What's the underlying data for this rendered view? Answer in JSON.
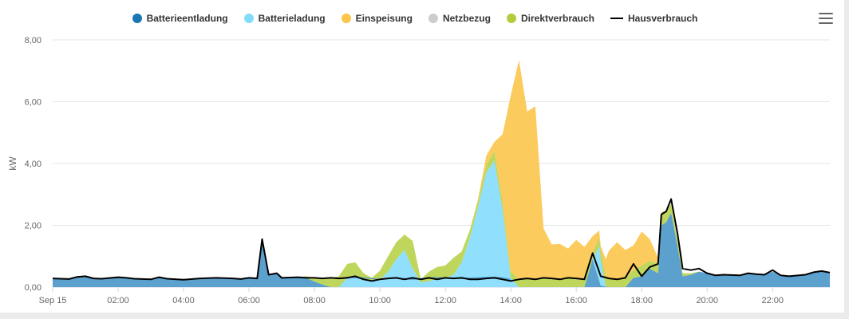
{
  "legend": {
    "items": [
      {
        "key": "batterieentladung",
        "label": "Batterieentladung",
        "color": "#1a77b4",
        "shape": "dot"
      },
      {
        "key": "batterieladung",
        "label": "Batterieladung",
        "color": "#84dcfc",
        "shape": "dot"
      },
      {
        "key": "einspeisung",
        "label": "Einspeisung",
        "color": "#fcc54c",
        "shape": "dot"
      },
      {
        "key": "netzbezug",
        "label": "Netzbezug",
        "color": "#cccccc",
        "shape": "dot"
      },
      {
        "key": "direktverbrauch",
        "label": "Direktverbrauch",
        "color": "#b4cc3c",
        "shape": "dot"
      },
      {
        "key": "hausverbrauch",
        "label": "Hausverbrauch",
        "color": "#000000",
        "shape": "line"
      }
    ]
  },
  "menu": {
    "icon": "hamburger-menu-icon"
  },
  "chart_data": {
    "type": "area",
    "ylabel": "kW",
    "ylim": [
      0,
      8
    ],
    "yticks": [
      "0,00",
      "2,00",
      "4,00",
      "6,00",
      "8,00"
    ],
    "xlim": [
      0,
      23.75
    ],
    "xticks": [
      {
        "v": 0,
        "label": "Sep 15"
      },
      {
        "v": 2,
        "label": "02:00"
      },
      {
        "v": 4,
        "label": "04:00"
      },
      {
        "v": 6,
        "label": "06:00"
      },
      {
        "v": 8,
        "label": "08:00"
      },
      {
        "v": 10,
        "label": "10:00"
      },
      {
        "v": 12,
        "label": "12:00"
      },
      {
        "v": 14,
        "label": "14:00"
      },
      {
        "v": 16,
        "label": "16:00"
      },
      {
        "v": 18,
        "label": "18:00"
      },
      {
        "v": 20,
        "label": "20:00"
      },
      {
        "v": 22,
        "label": "22:00"
      }
    ],
    "grid": true,
    "legend_position": "top",
    "stacked": true,
    "x_unit": "hours",
    "series": [
      {
        "name": "Batterieentladung",
        "key": "batterieentladung",
        "color": "#4a96c8",
        "points": [
          [
            0,
            0.28
          ],
          [
            0.5,
            0.26
          ],
          [
            0.75,
            0.33
          ],
          [
            1,
            0.35
          ],
          [
            1.25,
            0.28
          ],
          [
            1.5,
            0.27
          ],
          [
            2,
            0.32
          ],
          [
            2.25,
            0.3
          ],
          [
            2.5,
            0.27
          ],
          [
            3,
            0.25
          ],
          [
            3.25,
            0.32
          ],
          [
            3.5,
            0.27
          ],
          [
            4,
            0.24
          ],
          [
            4.5,
            0.28
          ],
          [
            5,
            0.3
          ],
          [
            5.5,
            0.28
          ],
          [
            5.75,
            0.26
          ],
          [
            6,
            0.3
          ],
          [
            6.25,
            0.28
          ],
          [
            6.4,
            1.5
          ],
          [
            6.6,
            0.4
          ],
          [
            6.85,
            0.45
          ],
          [
            7,
            0.3
          ],
          [
            7.5,
            0.32
          ],
          [
            7.75,
            0.3
          ],
          [
            8,
            0.18
          ],
          [
            8.25,
            0.08
          ],
          [
            8.5,
            0
          ],
          [
            8.75,
            0
          ],
          [
            9,
            0
          ],
          [
            9.5,
            0
          ],
          [
            10,
            0
          ],
          [
            10.5,
            0
          ],
          [
            11,
            0
          ],
          [
            11.5,
            0
          ],
          [
            12,
            0
          ],
          [
            12.5,
            0
          ],
          [
            13,
            0
          ],
          [
            13.5,
            0
          ],
          [
            14,
            0
          ],
          [
            14.5,
            0
          ],
          [
            15,
            0
          ],
          [
            15.25,
            0
          ],
          [
            15.5,
            0
          ],
          [
            15.75,
            0
          ],
          [
            16,
            0
          ],
          [
            16.25,
            0
          ],
          [
            16.5,
            0.9
          ],
          [
            16.75,
            0.05
          ],
          [
            17,
            0
          ],
          [
            17.5,
            0
          ],
          [
            17.75,
            0.3
          ],
          [
            18,
            0.35
          ],
          [
            18.25,
            0.6
          ],
          [
            18.5,
            0.45
          ],
          [
            18.6,
            2.0
          ],
          [
            18.75,
            2.1
          ],
          [
            18.9,
            2.4
          ],
          [
            19.1,
            1.3
          ],
          [
            19.25,
            0.35
          ],
          [
            19.5,
            0.4
          ],
          [
            19.75,
            0.5
          ],
          [
            20,
            0.45
          ],
          [
            20.25,
            0.38
          ],
          [
            20.5,
            0.4
          ],
          [
            21,
            0.38
          ],
          [
            21.25,
            0.45
          ],
          [
            21.5,
            0.42
          ],
          [
            21.75,
            0.4
          ],
          [
            22,
            0.5
          ],
          [
            22.25,
            0.38
          ],
          [
            22.5,
            0.35
          ],
          [
            23,
            0.4
          ],
          [
            23.25,
            0.48
          ],
          [
            23.5,
            0.5
          ],
          [
            23.75,
            0.45
          ]
        ]
      },
      {
        "name": "Batterieladung",
        "key": "batterieladung",
        "color": "#84dcfc",
        "points": [
          [
            0,
            0
          ],
          [
            8,
            0
          ],
          [
            8.25,
            0
          ],
          [
            8.5,
            0
          ],
          [
            8.75,
            0
          ],
          [
            9,
            0.3
          ],
          [
            9.25,
            0.35
          ],
          [
            9.5,
            0.25
          ],
          [
            9.75,
            0.2
          ],
          [
            10,
            0.25
          ],
          [
            10.25,
            0.5
          ],
          [
            10.5,
            0.9
          ],
          [
            10.75,
            1.2
          ],
          [
            11,
            0.6
          ],
          [
            11.25,
            0.15
          ],
          [
            11.5,
            0.2
          ],
          [
            11.75,
            0.25
          ],
          [
            12,
            0.3
          ],
          [
            12.25,
            0.4
          ],
          [
            12.5,
            0.8
          ],
          [
            12.75,
            1.6
          ],
          [
            13,
            2.6
          ],
          [
            13.25,
            3.7
          ],
          [
            13.5,
            4.1
          ],
          [
            13.75,
            2.5
          ],
          [
            14,
            0.3
          ],
          [
            14.25,
            0
          ],
          [
            15,
            0
          ],
          [
            15.5,
            0
          ],
          [
            16,
            0
          ],
          [
            16.5,
            0
          ],
          [
            16.7,
            1.1
          ],
          [
            16.9,
            0
          ],
          [
            17,
            0
          ],
          [
            23.75,
            0
          ]
        ]
      },
      {
        "name": "Direktverbrauch",
        "key": "direktverbrauch",
        "color": "#b8d24a",
        "points": [
          [
            0,
            0
          ],
          [
            7.5,
            0
          ],
          [
            7.75,
            0.05
          ],
          [
            8,
            0.12
          ],
          [
            8.25,
            0.2
          ],
          [
            8.5,
            0.3
          ],
          [
            8.75,
            0.35
          ],
          [
            9,
            0.45
          ],
          [
            9.25,
            0.45
          ],
          [
            9.5,
            0.2
          ],
          [
            9.75,
            0.1
          ],
          [
            10,
            0.28
          ],
          [
            10.25,
            0.5
          ],
          [
            10.5,
            0.55
          ],
          [
            10.75,
            0.5
          ],
          [
            11,
            0.9
          ],
          [
            11.25,
            0.1
          ],
          [
            11.5,
            0.3
          ],
          [
            11.75,
            0.4
          ],
          [
            12,
            0.4
          ],
          [
            12.25,
            0.55
          ],
          [
            12.5,
            0.35
          ],
          [
            12.75,
            0.25
          ],
          [
            13,
            0.2
          ],
          [
            13.25,
            0.25
          ],
          [
            13.5,
            0.3
          ],
          [
            13.75,
            0.25
          ],
          [
            14,
            0.2
          ],
          [
            14.25,
            0.25
          ],
          [
            14.5,
            0.28
          ],
          [
            14.75,
            0.25
          ],
          [
            15,
            0.3
          ],
          [
            15.25,
            0.28
          ],
          [
            15.5,
            0.25
          ],
          [
            15.75,
            0.3
          ],
          [
            16,
            0.28
          ],
          [
            16.25,
            0.25
          ],
          [
            16.5,
            0.2
          ],
          [
            16.75,
            0.3
          ],
          [
            17,
            0.28
          ],
          [
            17.25,
            0.25
          ],
          [
            17.5,
            0.3
          ],
          [
            17.75,
            0.25
          ],
          [
            18,
            0.35
          ],
          [
            18.25,
            0.25
          ],
          [
            18.5,
            0.3
          ],
          [
            18.75,
            0.35
          ],
          [
            19,
            0.25
          ],
          [
            19.25,
            0.1
          ],
          [
            19.5,
            0.05
          ],
          [
            19.75,
            0
          ],
          [
            23.75,
            0
          ]
        ]
      },
      {
        "name": "Einspeisung",
        "key": "einspeisung",
        "color": "#fcc54c",
        "points": [
          [
            0,
            0
          ],
          [
            12.75,
            0
          ],
          [
            13,
            0.05
          ],
          [
            13.25,
            0.3
          ],
          [
            13.5,
            0.3
          ],
          [
            13.75,
            2.2
          ],
          [
            14,
            5.7
          ],
          [
            14.25,
            7.1
          ],
          [
            14.5,
            5.4
          ],
          [
            14.75,
            5.6
          ],
          [
            15,
            1.6
          ],
          [
            15.25,
            1.1
          ],
          [
            15.5,
            1.15
          ],
          [
            15.75,
            0.95
          ],
          [
            16,
            1.25
          ],
          [
            16.25,
            1.05
          ],
          [
            16.5,
            0.55
          ],
          [
            16.75,
            0.15
          ],
          [
            17,
            0.9
          ],
          [
            17.25,
            1.2
          ],
          [
            17.5,
            0.9
          ],
          [
            17.75,
            0.8
          ],
          [
            18,
            1.1
          ],
          [
            18.25,
            0.7
          ],
          [
            18.5,
            0.2
          ],
          [
            18.75,
            0
          ],
          [
            23.75,
            0
          ]
        ]
      }
    ],
    "hausverbrauch_points": [
      [
        0,
        0.28
      ],
      [
        0.5,
        0.26
      ],
      [
        0.75,
        0.33
      ],
      [
        1,
        0.35
      ],
      [
        1.25,
        0.28
      ],
      [
        1.5,
        0.27
      ],
      [
        2,
        0.32
      ],
      [
        2.25,
        0.3
      ],
      [
        2.5,
        0.27
      ],
      [
        3,
        0.25
      ],
      [
        3.25,
        0.32
      ],
      [
        3.5,
        0.27
      ],
      [
        4,
        0.24
      ],
      [
        4.5,
        0.28
      ],
      [
        5,
        0.3
      ],
      [
        5.5,
        0.28
      ],
      [
        5.75,
        0.26
      ],
      [
        6,
        0.3
      ],
      [
        6.25,
        0.28
      ],
      [
        6.4,
        1.55
      ],
      [
        6.6,
        0.4
      ],
      [
        6.85,
        0.45
      ],
      [
        7,
        0.3
      ],
      [
        7.5,
        0.32
      ],
      [
        7.75,
        0.3
      ],
      [
        8,
        0.3
      ],
      [
        8.25,
        0.28
      ],
      [
        8.5,
        0.3
      ],
      [
        8.75,
        0.28
      ],
      [
        9,
        0.3
      ],
      [
        9.25,
        0.35
      ],
      [
        9.5,
        0.25
      ],
      [
        9.75,
        0.2
      ],
      [
        10,
        0.25
      ],
      [
        10.25,
        0.28
      ],
      [
        10.5,
        0.3
      ],
      [
        10.75,
        0.25
      ],
      [
        11,
        0.3
      ],
      [
        11.25,
        0.25
      ],
      [
        11.5,
        0.3
      ],
      [
        11.75,
        0.25
      ],
      [
        12,
        0.3
      ],
      [
        12.25,
        0.28
      ],
      [
        12.5,
        0.3
      ],
      [
        12.75,
        0.25
      ],
      [
        13,
        0.25
      ],
      [
        13.25,
        0.28
      ],
      [
        13.5,
        0.3
      ],
      [
        13.75,
        0.25
      ],
      [
        14,
        0.2
      ],
      [
        14.25,
        0.25
      ],
      [
        14.5,
        0.28
      ],
      [
        14.75,
        0.25
      ],
      [
        15,
        0.3
      ],
      [
        15.25,
        0.28
      ],
      [
        15.5,
        0.25
      ],
      [
        15.75,
        0.3
      ],
      [
        16,
        0.28
      ],
      [
        16.25,
        0.25
      ],
      [
        16.5,
        1.1
      ],
      [
        16.75,
        0.35
      ],
      [
        17,
        0.28
      ],
      [
        17.25,
        0.25
      ],
      [
        17.5,
        0.3
      ],
      [
        17.75,
        0.75
      ],
      [
        18,
        0.35
      ],
      [
        18.25,
        0.65
      ],
      [
        18.5,
        0.75
      ],
      [
        18.6,
        2.35
      ],
      [
        18.75,
        2.45
      ],
      [
        18.9,
        2.85
      ],
      [
        19.1,
        1.7
      ],
      [
        19.25,
        0.6
      ],
      [
        19.5,
        0.55
      ],
      [
        19.75,
        0.6
      ],
      [
        20,
        0.45
      ],
      [
        20.25,
        0.38
      ],
      [
        20.5,
        0.4
      ],
      [
        21,
        0.38
      ],
      [
        21.25,
        0.45
      ],
      [
        21.5,
        0.42
      ],
      [
        21.75,
        0.4
      ],
      [
        22,
        0.55
      ],
      [
        22.25,
        0.38
      ],
      [
        22.5,
        0.35
      ],
      [
        23,
        0.4
      ],
      [
        23.25,
        0.48
      ],
      [
        23.5,
        0.52
      ],
      [
        23.75,
        0.47
      ]
    ],
    "battery_line_points": [
      [
        8.75,
        0.28
      ],
      [
        9,
        0.32
      ],
      [
        9.5,
        0.3
      ],
      [
        10,
        0.25
      ],
      [
        10.5,
        0.3
      ],
      [
        11,
        0.25
      ],
      [
        11.5,
        0.3
      ],
      [
        12,
        0.3
      ],
      [
        12.5,
        0.28
      ],
      [
        13,
        0.3
      ],
      [
        13.5,
        0.32
      ],
      [
        13.75,
        0.3
      ],
      [
        14,
        0.25
      ]
    ]
  }
}
